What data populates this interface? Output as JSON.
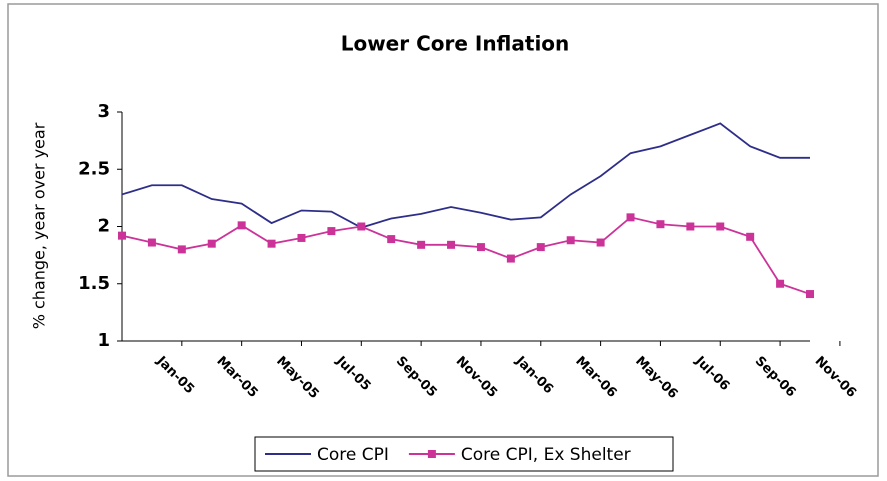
{
  "chart_data": {
    "type": "line",
    "title": "Lower Core Inflation",
    "y_label": "% change, year over year",
    "categories": [
      null,
      "Jan-05",
      null,
      "Mar-05",
      null,
      "May-05",
      null,
      "Jul-05",
      null,
      "Sep-05",
      null,
      "Nov-05",
      null,
      "Jan-06",
      null,
      "Mar-06",
      null,
      "May-06",
      null,
      "Jul-06",
      null,
      "Sep-06",
      null,
      "Nov-06"
    ],
    "series": [
      {
        "name": "Core CPI",
        "color": "#2e2e8a",
        "marker": false,
        "values": [
          2.28,
          2.36,
          2.36,
          2.24,
          2.2,
          2.03,
          2.14,
          2.13,
          1.99,
          2.07,
          2.11,
          2.17,
          2.12,
          2.06,
          2.08,
          2.28,
          2.44,
          2.64,
          2.7,
          2.8,
          2.9,
          2.7,
          2.6,
          2.6
        ]
      },
      {
        "name": "Core CPI, Ex Shelter",
        "color": "#cc3399",
        "marker": true,
        "values": [
          1.92,
          1.86,
          1.8,
          1.85,
          2.01,
          1.85,
          1.9,
          1.96,
          2.0,
          1.89,
          1.84,
          1.84,
          1.82,
          1.72,
          1.82,
          1.88,
          1.86,
          2.08,
          2.02,
          2.0,
          2.0,
          1.91,
          1.5,
          1.41
        ]
      }
    ],
    "ylim": [
      1,
      3
    ],
    "yticks": [
      1,
      1.5,
      2,
      2.5,
      3
    ],
    "grid": false,
    "legend": "bottom"
  }
}
